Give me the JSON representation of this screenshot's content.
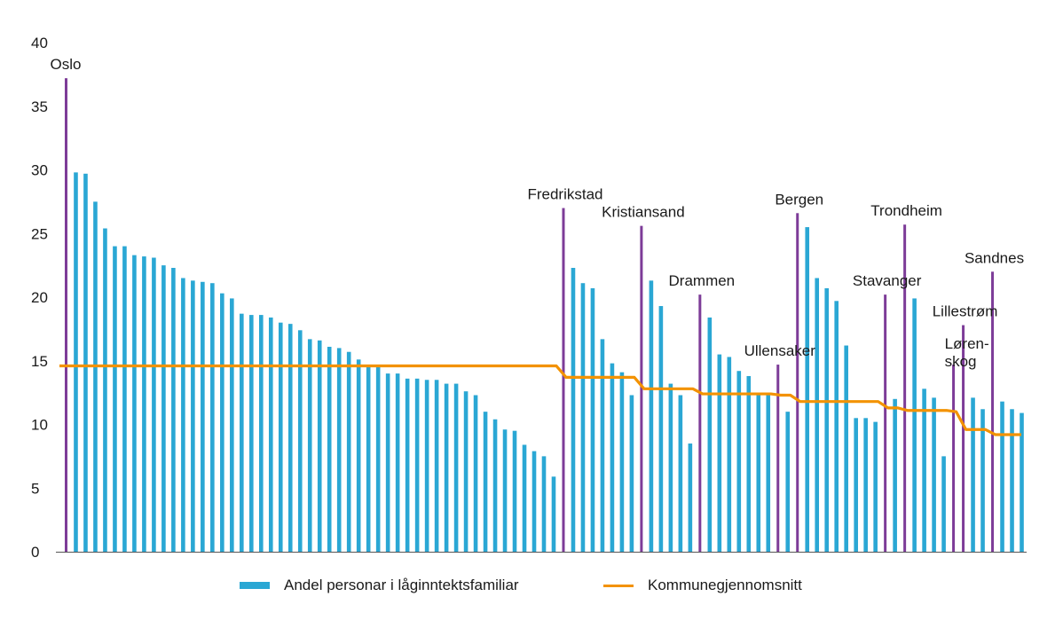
{
  "chart_data": {
    "type": "bar",
    "ylim": [
      0,
      40
    ],
    "yticks": [
      0,
      5,
      10,
      15,
      20,
      25,
      30,
      35,
      40
    ],
    "grid": false,
    "legend_position": "bottom",
    "colors": {
      "bars": "#2aa7d4",
      "city_bars": "#7d3c98",
      "line": "#f39200"
    },
    "series": [
      {
        "name": "Andel personar i låginntektsfamiliar",
        "kind": "bar"
      },
      {
        "name": "Kommunegjennomsnitt",
        "kind": "line"
      }
    ],
    "groups": [
      {
        "city": "Oslo",
        "city_value": 37.2,
        "average": 14.6,
        "values": [
          29.8,
          29.7,
          27.5,
          25.4,
          24.0,
          24.0,
          23.3,
          23.2,
          23.1,
          22.5,
          22.3,
          21.5,
          21.3,
          21.2,
          21.1,
          20.3,
          19.9,
          18.7,
          18.6,
          18.6,
          18.4,
          18.0,
          17.9,
          17.4,
          16.7,
          16.6,
          16.1,
          16.0,
          15.7,
          15.1,
          14.7,
          14.5,
          14.0,
          14.0,
          13.6,
          13.6,
          13.5,
          13.5,
          13.2,
          13.2,
          12.6,
          12.3,
          11.0,
          10.4,
          9.6,
          9.5,
          8.4,
          7.9,
          7.5,
          5.9
        ]
      },
      {
        "city": "Fredrikstad",
        "city_value": 27.0,
        "average": 13.7,
        "values": [
          22.3,
          21.1,
          20.7,
          16.7,
          14.8,
          14.1,
          12.3
        ]
      },
      {
        "city": "Kristiansand",
        "city_value": 25.6,
        "average": 12.8,
        "values": [
          21.3,
          19.3,
          13.2,
          12.3,
          8.5
        ]
      },
      {
        "city": "Drammen",
        "city_value": 20.2,
        "average": 12.4,
        "values": [
          18.4,
          15.5,
          15.3,
          14.2,
          13.8,
          12.5,
          12.3
        ]
      },
      {
        "city": "Ullensaker",
        "city_value": 14.7,
        "average": 12.3,
        "values": [
          11.0
        ]
      },
      {
        "city": "Bergen",
        "city_value": 26.6,
        "average": 11.8,
        "values": [
          25.5,
          21.5,
          20.7,
          19.7,
          16.2,
          10.5,
          10.5,
          10.2
        ]
      },
      {
        "city": "Stavanger",
        "city_value": 20.2,
        "average": 11.3,
        "values": [
          12.0
        ]
      },
      {
        "city": "Trondheim",
        "city_value": 25.7,
        "average": 11.1,
        "values": [
          19.9,
          12.8,
          12.1,
          7.5
        ]
      },
      {
        "city": "Løren-skog",
        "city_value": 14.7,
        "average": 11.0,
        "values": []
      },
      {
        "city": "Lillestrøm",
        "city_value": 17.8,
        "average": 9.6,
        "values": [
          12.1,
          11.2
        ]
      },
      {
        "city": "Sandnes",
        "city_value": 22.0,
        "average": 9.2,
        "values": [
          11.8,
          11.2,
          10.9
        ]
      }
    ]
  },
  "legend": {
    "bars_label": "Andel personar i låginntektsfamiliar",
    "line_label": "Kommunegjennomsnitt"
  }
}
